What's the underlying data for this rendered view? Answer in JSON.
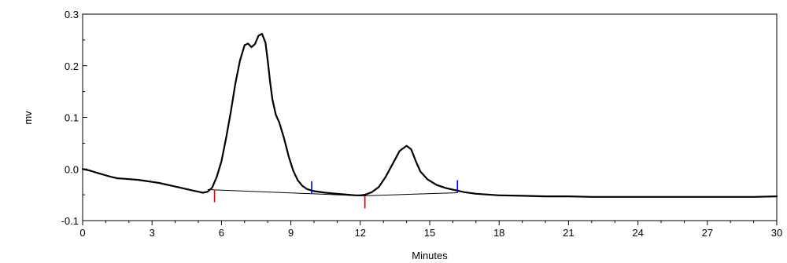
{
  "chart_data": {
    "type": "line",
    "title": "",
    "xlabel": "Minutes",
    "ylabel": "mv",
    "xlim": [
      0,
      30
    ],
    "ylim": [
      -0.1,
      0.3
    ],
    "grid": false,
    "legend": "none",
    "x_ticks": [
      0,
      3,
      6,
      9,
      12,
      15,
      18,
      21,
      24,
      27,
      30
    ],
    "x_tick_labels": [
      "0",
      "3",
      "6",
      "9",
      "12",
      "15",
      "18",
      "21",
      "24",
      "27",
      "30"
    ],
    "y_ticks": [
      -0.1,
      0.0,
      0.1,
      0.2,
      0.3
    ],
    "y_tick_labels": [
      "-0.1",
      "0.0",
      "0.1",
      "0.2",
      "0.3"
    ],
    "series": [
      {
        "color": "#000000",
        "points": [
          [
            0.0,
            0.0
          ],
          [
            0.3,
            -0.003
          ],
          [
            0.6,
            -0.007
          ],
          [
            0.9,
            -0.011
          ],
          [
            1.2,
            -0.015
          ],
          [
            1.5,
            -0.018
          ],
          [
            1.8,
            -0.019
          ],
          [
            2.1,
            -0.02
          ],
          [
            2.4,
            -0.021
          ],
          [
            2.7,
            -0.023
          ],
          [
            3.0,
            -0.025
          ],
          [
            3.3,
            -0.027
          ],
          [
            3.6,
            -0.03
          ],
          [
            3.9,
            -0.033
          ],
          [
            4.2,
            -0.036
          ],
          [
            4.5,
            -0.039
          ],
          [
            4.8,
            -0.042
          ],
          [
            5.0,
            -0.044
          ],
          [
            5.2,
            -0.046
          ],
          [
            5.4,
            -0.044
          ],
          [
            5.6,
            -0.036
          ],
          [
            5.8,
            -0.015
          ],
          [
            6.0,
            0.015
          ],
          [
            6.2,
            0.06
          ],
          [
            6.4,
            0.11
          ],
          [
            6.6,
            0.165
          ],
          [
            6.8,
            0.21
          ],
          [
            7.0,
            0.24
          ],
          [
            7.15,
            0.243
          ],
          [
            7.3,
            0.236
          ],
          [
            7.45,
            0.242
          ],
          [
            7.6,
            0.258
          ],
          [
            7.75,
            0.262
          ],
          [
            7.9,
            0.245
          ],
          [
            8.0,
            0.21
          ],
          [
            8.1,
            0.17
          ],
          [
            8.2,
            0.135
          ],
          [
            8.35,
            0.105
          ],
          [
            8.5,
            0.09
          ],
          [
            8.7,
            0.06
          ],
          [
            8.9,
            0.025
          ],
          [
            9.1,
            -0.003
          ],
          [
            9.3,
            -0.022
          ],
          [
            9.5,
            -0.033
          ],
          [
            9.7,
            -0.039
          ],
          [
            10.0,
            -0.043
          ],
          [
            10.5,
            -0.046
          ],
          [
            11.0,
            -0.048
          ],
          [
            11.5,
            -0.05
          ],
          [
            11.8,
            -0.051
          ],
          [
            12.0,
            -0.051
          ],
          [
            12.2,
            -0.05
          ],
          [
            12.5,
            -0.045
          ],
          [
            12.8,
            -0.035
          ],
          [
            13.1,
            -0.015
          ],
          [
            13.4,
            0.01
          ],
          [
            13.7,
            0.035
          ],
          [
            14.0,
            0.045
          ],
          [
            14.2,
            0.038
          ],
          [
            14.4,
            0.015
          ],
          [
            14.6,
            -0.005
          ],
          [
            14.9,
            -0.02
          ],
          [
            15.3,
            -0.031
          ],
          [
            15.7,
            -0.037
          ],
          [
            16.1,
            -0.041
          ],
          [
            16.5,
            -0.045
          ],
          [
            17.0,
            -0.048
          ],
          [
            18.0,
            -0.051
          ],
          [
            19.0,
            -0.052
          ],
          [
            20.0,
            -0.053
          ],
          [
            21.0,
            -0.053
          ],
          [
            22.0,
            -0.054
          ],
          [
            23.0,
            -0.054
          ],
          [
            24.0,
            -0.054
          ],
          [
            25.0,
            -0.054
          ],
          [
            26.0,
            -0.054
          ],
          [
            27.0,
            -0.054
          ],
          [
            28.0,
            -0.054
          ],
          [
            29.0,
            -0.054
          ],
          [
            30.0,
            -0.053
          ]
        ]
      }
    ],
    "baselines": [
      {
        "color": "#000000",
        "from": [
          5.4,
          -0.04
        ],
        "to": [
          9.9,
          -0.048
        ]
      },
      {
        "color": "#000000",
        "from": [
          12.1,
          -0.052
        ],
        "to": [
          16.2,
          -0.046
        ]
      }
    ],
    "peak_markers": [
      {
        "color": "#e00000",
        "x": 5.7,
        "y": -0.04
      },
      {
        "color": "#0000d0",
        "x": 9.9,
        "y": -0.048
      },
      {
        "color": "#e00000",
        "x": 12.2,
        "y": -0.052
      },
      {
        "color": "#0000d0",
        "x": 16.2,
        "y": -0.046
      }
    ]
  }
}
